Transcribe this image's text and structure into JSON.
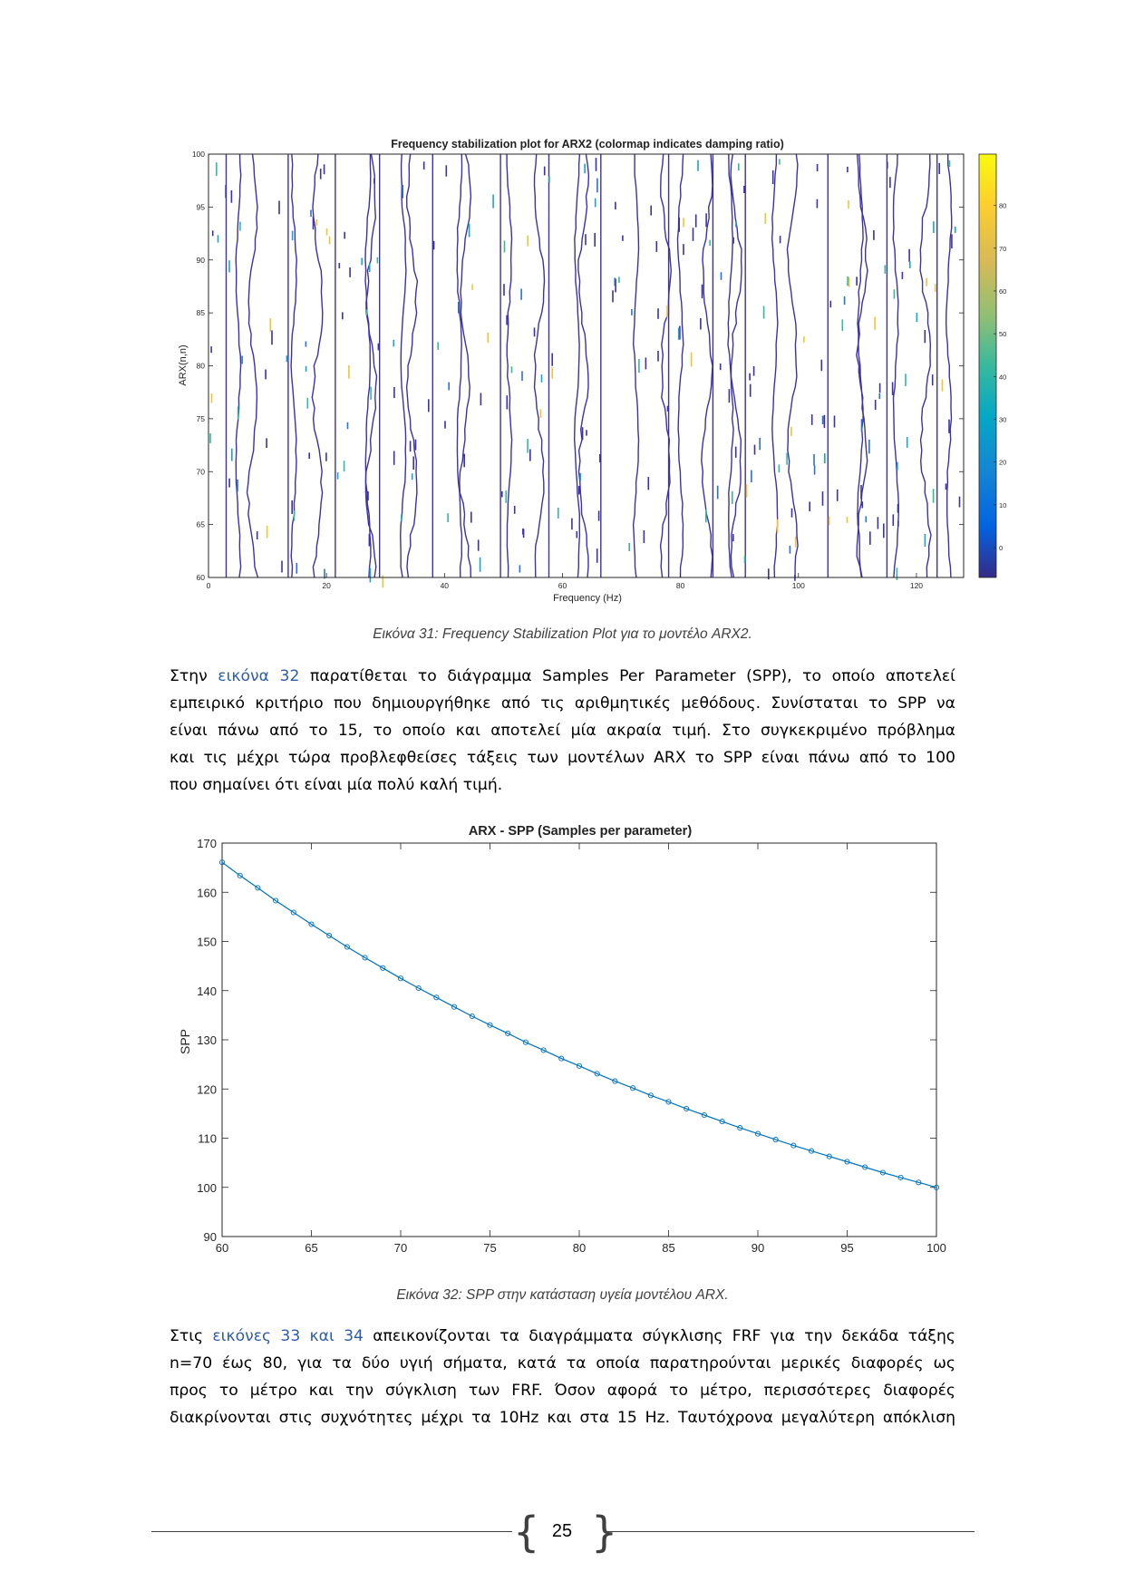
{
  "figure31": {
    "chart_data": {
      "type": "stabilization",
      "title": "Frequency stabilization plot for ARX2 (colormap indicates damping ratio)",
      "xlabel": "Frequency (Hz)",
      "ylabel": "ARX(n,n)",
      "xlim": [
        0,
        128
      ],
      "ylim": [
        60,
        100
      ],
      "xticks": [
        0,
        20,
        40,
        60,
        80,
        100,
        120
      ],
      "yticks": [
        60,
        65,
        70,
        75,
        80,
        85,
        90,
        95,
        100
      ],
      "colorbar_ticks": [
        0,
        10,
        20,
        30,
        40,
        50,
        60,
        70,
        80
      ],
      "stable_lines_hz": [
        3,
        5,
        7.5,
        13.5,
        14.5,
        18.5,
        21.5,
        27,
        27.6,
        29,
        33,
        34.5,
        38,
        42.5,
        43.5,
        49.5,
        51,
        56,
        57.7,
        62.5,
        63.5,
        66.5,
        72.5,
        77.5,
        78,
        80,
        84.5,
        85.5,
        88.5,
        89.5,
        91,
        96,
        99,
        105,
        110.5,
        110.8,
        115,
        116.5,
        121.5,
        123.5,
        125.5
      ]
    },
    "caption": "Εικόνα 31: Frequency Stabilization Plot για το μοντέλο ARX2."
  },
  "paragraph1": {
    "l1a": "Στην ",
    "l1link": "εικόνα 32",
    "l1b": " παρατίθεται το διάγραμμα Samples Per Parameter (SPP), το οποίο αποτελεί",
    "l2": "εμπειρικό κριτήριο που δημιουργήθηκε από τις αριθμητικές μεθόδους. Συνίσταται το SPP να",
    "l3": "είναι πάνω από το 15, το οποίο και αποτελεί μία ακραία τιμή. Στο συγκεκριμένο πρόβλημα",
    "l4": "και τις μέχρι τώρα προβλεφθείσες τάξεις των μοντέλων ARX  το SPP είναι πάνω από το 100",
    "l5": "που σημαίνει ότι είναι μία πολύ καλή τιμή."
  },
  "figure32": {
    "chart_data": {
      "type": "line",
      "title": "ARX - SPP (Samples per parameter)",
      "xlabel": "",
      "ylabel": "SPP",
      "xlim": [
        60,
        100
      ],
      "ylim": [
        90,
        170
      ],
      "xticks": [
        60,
        65,
        70,
        75,
        80,
        85,
        90,
        95,
        100
      ],
      "yticks": [
        90,
        100,
        110,
        120,
        130,
        140,
        150,
        160,
        170
      ],
      "series": [
        {
          "x": [
            60,
            61,
            62,
            63,
            64,
            65,
            66,
            67,
            68,
            69,
            70,
            71,
            72,
            73,
            74,
            75,
            76,
            77,
            78,
            79,
            80,
            81,
            82,
            83,
            84,
            85,
            86,
            87,
            88,
            89,
            90,
            91,
            92,
            93,
            94,
            95,
            96,
            97,
            98,
            99,
            100
          ],
          "values": [
            166.1,
            163.4,
            160.9,
            158.3,
            155.9,
            153.5,
            151.2,
            148.9,
            146.7,
            144.6,
            142.5,
            140.5,
            138.6,
            136.7,
            134.8,
            133.0,
            131.3,
            129.5,
            127.9,
            126.2,
            124.7,
            123.1,
            121.6,
            120.2,
            118.7,
            117.4,
            116.0,
            114.7,
            113.4,
            112.1,
            110.9,
            109.7,
            108.5,
            107.4,
            106.3,
            105.2,
            104.1,
            103.0,
            102.0,
            101.0,
            100.0
          ]
        }
      ],
      "color": "#0072bd"
    },
    "caption": "Εικόνα 32: SPP στην κατάσταση υγεία μοντέλου ARX."
  },
  "paragraph2": {
    "l1a": "Στις ",
    "l1link": "εικόνες 33 και 34",
    "l1b": " απεικονίζονται τα διαγράμματα σύγκλισης FRF για την δεκάδα τάξης",
    "l2": "n=70 έως 80, για τα δύο υγιή σήματα, κατά τα οποία παρατηρούνται μερικές διαφορές ως",
    "l3": "προς το μέτρο και την σύγκλιση των   FRF. Όσον αφορά το μέτρο, περισσότερες διαφορές",
    "l4": "διακρίνονται στις συχνότητες μέχρι τα 10Hz και στα 15 Hz. Ταυτόχρονα μεγαλύτερη απόκλιση"
  },
  "footer": {
    "page_number": "25"
  }
}
